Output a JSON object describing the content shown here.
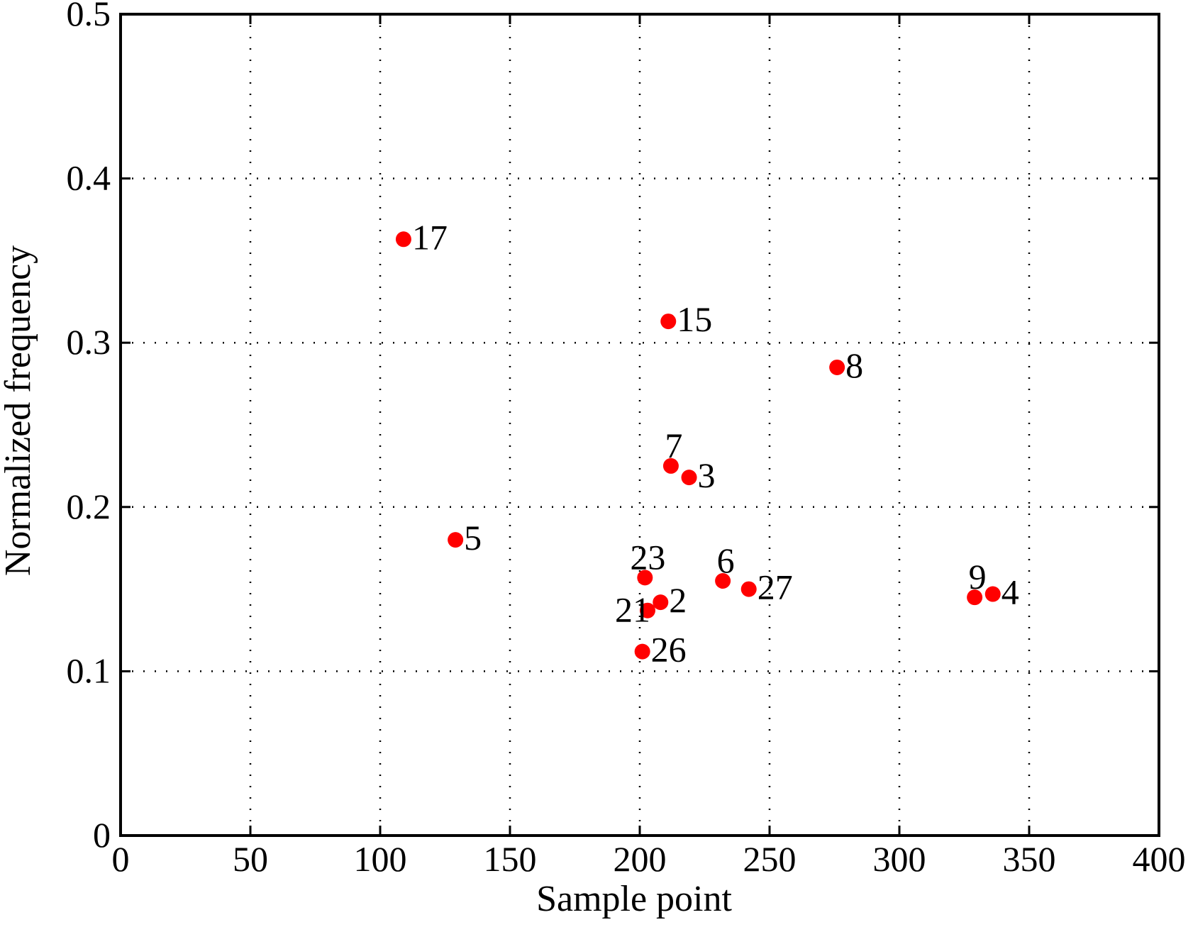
{
  "chart_data": {
    "type": "scatter",
    "title": "",
    "xlabel": "Sample point",
    "ylabel": "Normalized frequency",
    "xlim": [
      0,
      400
    ],
    "ylim": [
      0,
      0.5
    ],
    "xticks": [
      0,
      50,
      100,
      150,
      200,
      250,
      300,
      350,
      400
    ],
    "xtick_labels": [
      "0",
      "50",
      "100",
      "150",
      "200",
      "250",
      "300",
      "350",
      "400"
    ],
    "yticks": [
      0,
      0.1,
      0.2,
      0.3,
      0.4,
      0.5
    ],
    "ytick_labels": [
      "0",
      "0.1",
      "0.2",
      "0.3",
      "0.4",
      "0.5"
    ],
    "grid": true,
    "legend": false,
    "marker_color": "#ff0000",
    "points": [
      {
        "label": "17",
        "x": 109,
        "y": 0.363,
        "label_side": "right"
      },
      {
        "label": "15",
        "x": 211,
        "y": 0.313,
        "label_side": "right"
      },
      {
        "label": "8",
        "x": 276,
        "y": 0.285,
        "label_side": "right"
      },
      {
        "label": "7",
        "x": 212,
        "y": 0.225,
        "label_side": "above"
      },
      {
        "label": "3",
        "x": 219,
        "y": 0.218,
        "label_side": "right"
      },
      {
        "label": "5",
        "x": 129,
        "y": 0.18,
        "label_side": "right"
      },
      {
        "label": "23",
        "x": 202,
        "y": 0.157,
        "label_side": "above"
      },
      {
        "label": "6",
        "x": 232,
        "y": 0.155,
        "label_side": "above"
      },
      {
        "label": "27",
        "x": 242,
        "y": 0.15,
        "label_side": "right"
      },
      {
        "label": "2",
        "x": 208,
        "y": 0.142,
        "label_side": "right"
      },
      {
        "label": "21",
        "x": 203,
        "y": 0.137,
        "label_side": "left"
      },
      {
        "label": "26",
        "x": 201,
        "y": 0.112,
        "label_side": "right"
      },
      {
        "label": "9",
        "x": 329,
        "y": 0.145,
        "label_side": "above"
      },
      {
        "label": "4",
        "x": 336,
        "y": 0.147,
        "label_side": "right"
      }
    ]
  }
}
